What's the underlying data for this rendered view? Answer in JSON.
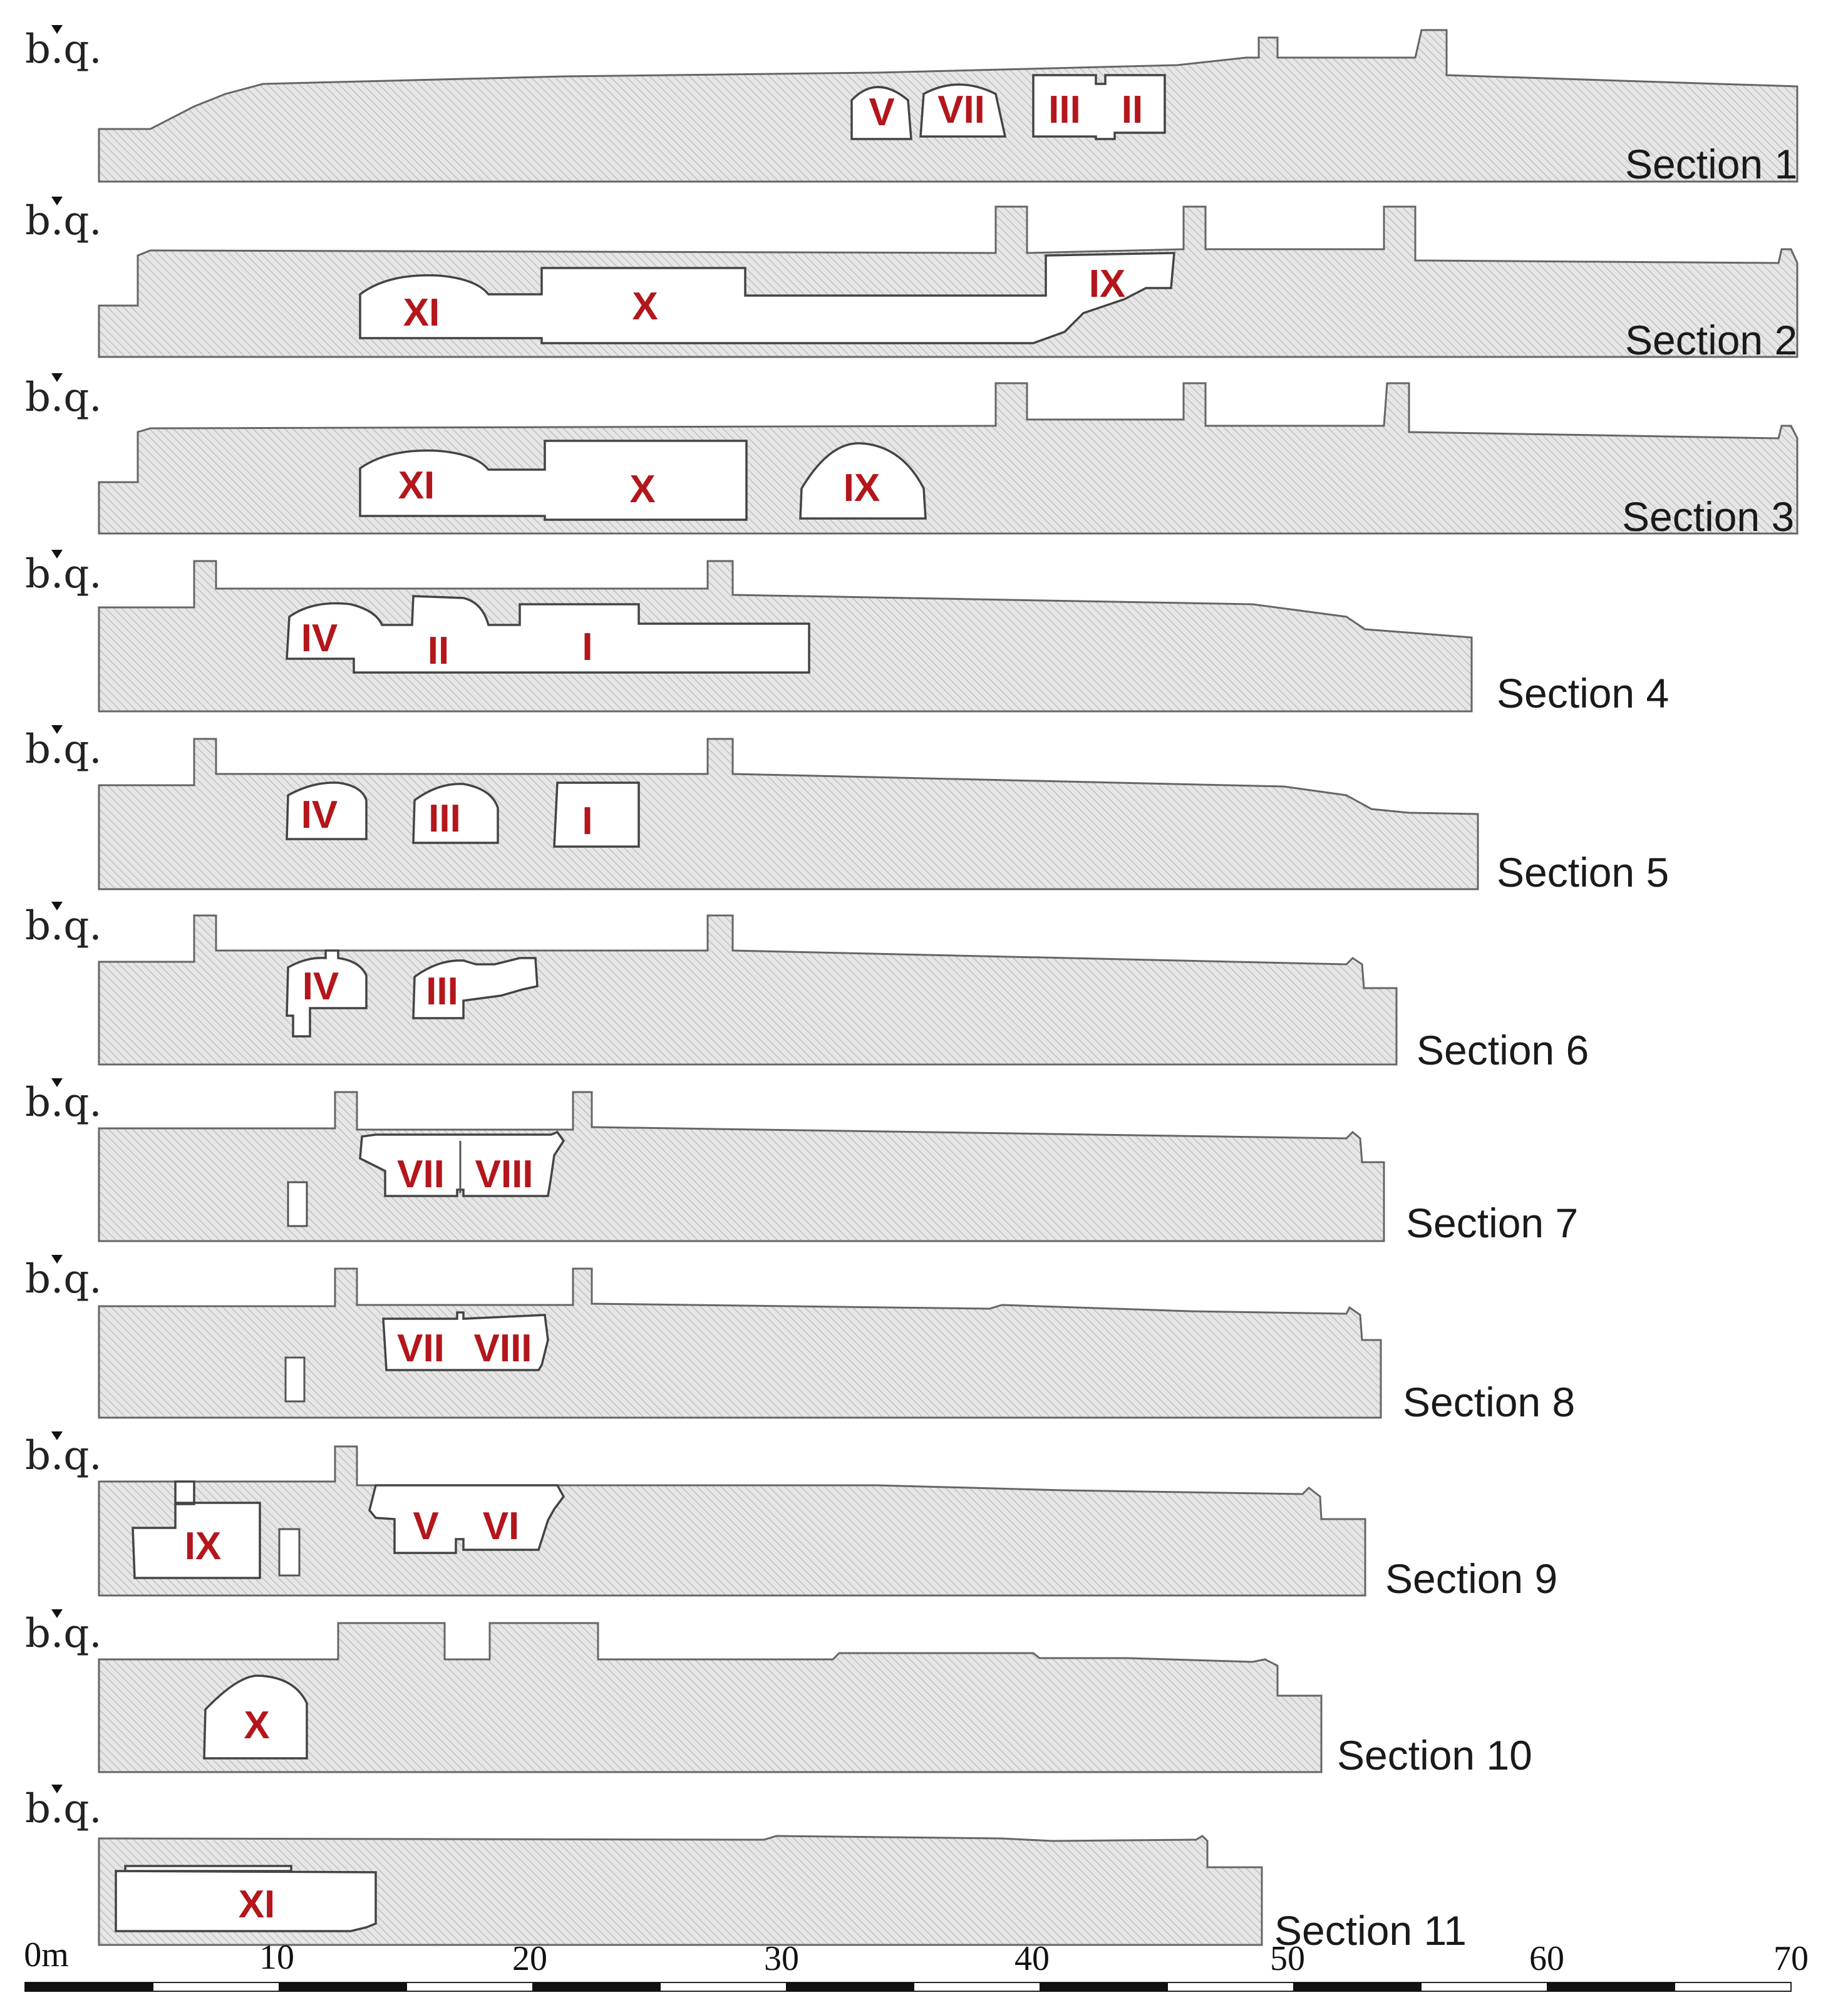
{
  "sections": [
    {
      "label": "Section 1",
      "marker": "b.q.",
      "rooms": [
        "V",
        "VII",
        "III",
        "II"
      ]
    },
    {
      "label": "Section 2",
      "marker": "b.q.",
      "rooms": [
        "XI",
        "X",
        "IX"
      ]
    },
    {
      "label": "Section 3",
      "marker": "b.q.",
      "rooms": [
        "XI",
        "X",
        "IX"
      ]
    },
    {
      "label": "Section 4",
      "marker": "b.q.",
      "rooms": [
        "IV",
        "II",
        "I"
      ]
    },
    {
      "label": "Section 5",
      "marker": "b.q.",
      "rooms": [
        "IV",
        "III",
        "I"
      ]
    },
    {
      "label": "Section 6",
      "marker": "b.q.",
      "rooms": [
        "IV",
        "III"
      ]
    },
    {
      "label": "Section 7",
      "marker": "b.q.",
      "rooms": [
        "VII",
        "VIII"
      ]
    },
    {
      "label": "Section 8",
      "marker": "b.q.",
      "rooms": [
        "VII",
        "VIII"
      ]
    },
    {
      "label": "Section 9",
      "marker": "b.q.",
      "rooms": [
        "IX",
        "V",
        "VI"
      ]
    },
    {
      "label": "Section 10",
      "marker": "b.q.",
      "rooms": [
        "X"
      ]
    },
    {
      "label": "Section 11",
      "marker": "b.q.",
      "rooms": [
        "XI"
      ]
    }
  ],
  "scale_bar": {
    "ticks": [
      "0m",
      "10",
      "20",
      "30",
      "40",
      "50",
      "60",
      "70"
    ]
  },
  "colors": {
    "room_label": "#b3161b",
    "ground_fill": "#e6e6e6",
    "hatch_line": "#b4b4b4"
  }
}
